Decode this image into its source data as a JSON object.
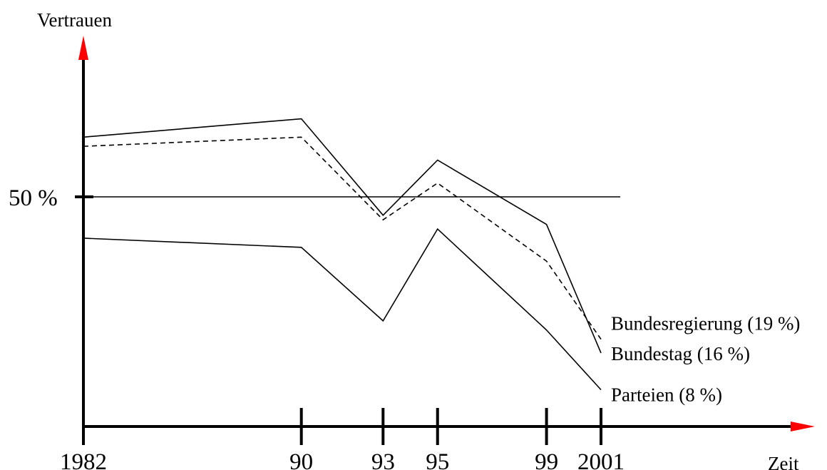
{
  "chart_data": {
    "type": "line",
    "title": "",
    "ylabel": "Vertrauen",
    "xlabel": "Zeit",
    "ylim": [
      0,
      100
    ],
    "y_reference": {
      "value": 50,
      "label": "50 %"
    },
    "x": [
      1982,
      1990,
      1993,
      1995,
      1999,
      2001
    ],
    "x_tick_labels": [
      "1982",
      "90",
      "93",
      "95",
      "99",
      "2001"
    ],
    "series": [
      {
        "name": "Bundesregierung (19 %)",
        "style": "dashed",
        "values": [
          61,
          63,
          45,
          53,
          36,
          19
        ]
      },
      {
        "name": "Bundestag (16 %)",
        "style": "solid",
        "values": [
          63,
          67,
          46,
          58,
          44,
          16
        ]
      },
      {
        "name": "Parteien (8 %)",
        "style": "solid",
        "values": [
          41,
          39,
          23,
          43,
          21,
          8
        ]
      }
    ],
    "grid": false,
    "legend": "inline-right",
    "colors": {
      "axis": "#000000",
      "arrow": "#ff0000",
      "line": "#000000"
    }
  }
}
